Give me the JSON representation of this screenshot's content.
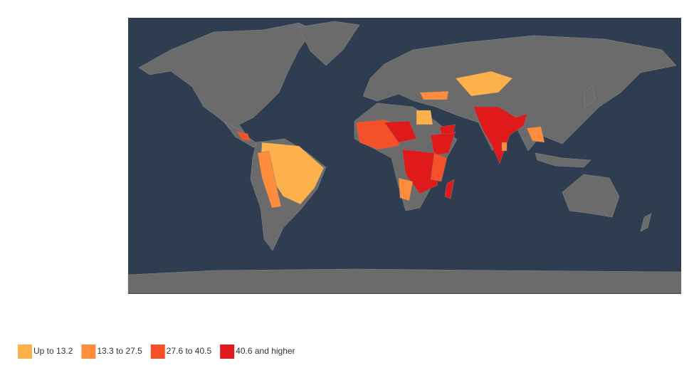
{
  "legend": [
    {
      "label": "Up to 13.2",
      "color": "#fdb14d"
    },
    {
      "label": "13.3 to 27.5",
      "color": "#fd8d3c"
    },
    {
      "label": "27.6 to 40.5",
      "color": "#f4502a"
    },
    {
      "label": "40.6 and higher",
      "color": "#e0191b"
    }
  ],
  "ocean_color": "#2e3e50",
  "land_color": "#6b6b6b"
}
